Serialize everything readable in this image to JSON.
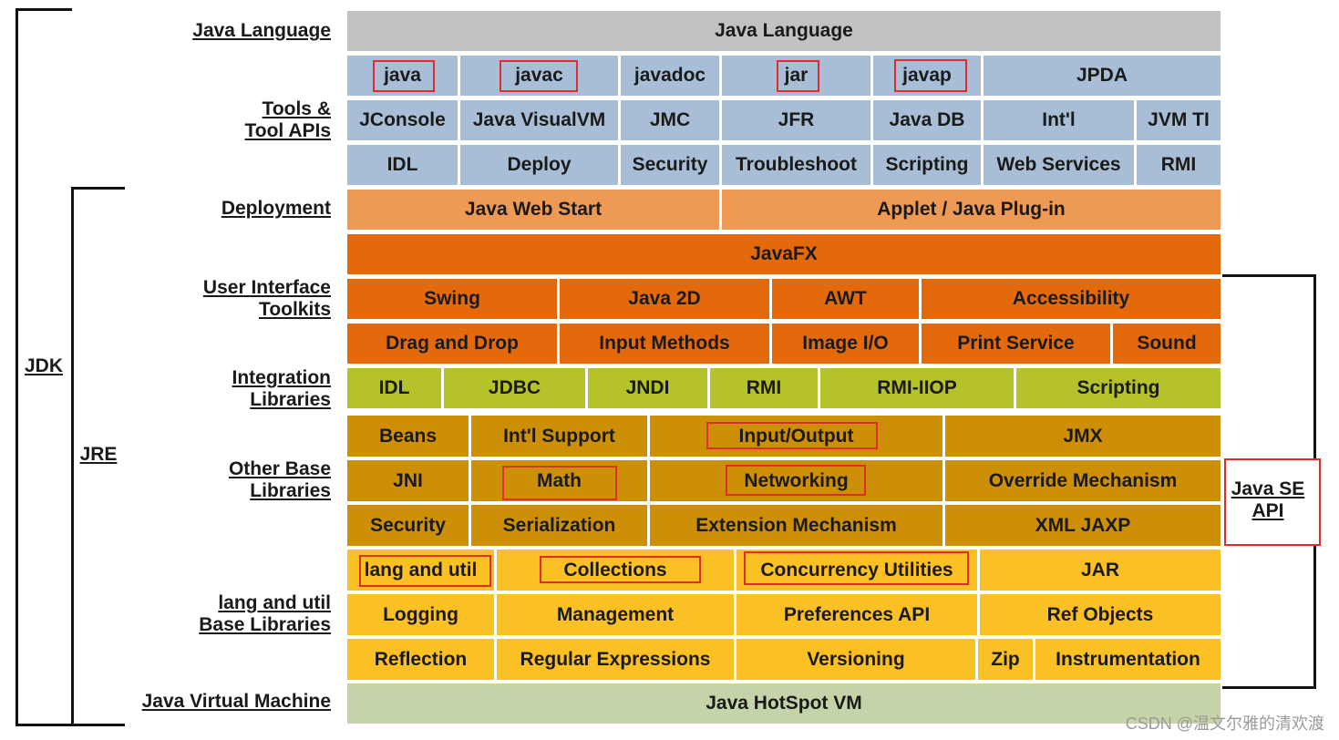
{
  "rows": {
    "java_language": [
      "Java Language"
    ],
    "tools_1": [
      "java",
      "javac",
      "javadoc",
      "jar",
      "javap",
      "JPDA"
    ],
    "tools_2": [
      "JConsole",
      "Java VisualVM",
      "JMC",
      "JFR",
      "Java DB",
      "Int'l",
      "JVM TI"
    ],
    "tools_3": [
      "IDL",
      "Deploy",
      "Security",
      "Troubleshoot",
      "Scripting",
      "Web Services",
      "RMI"
    ],
    "deployment": [
      "Java Web Start",
      "Applet / Java Plug-in"
    ],
    "javafx": [
      "JavaFX"
    ],
    "ui_1": [
      "Swing",
      "Java 2D",
      "AWT",
      "Accessibility"
    ],
    "ui_2": [
      "Drag and Drop",
      "Input Methods",
      "Image I/O",
      "Print Service",
      "Sound"
    ],
    "integration": [
      "IDL",
      "JDBC",
      "JNDI",
      "RMI",
      "RMI-IIOP",
      "Scripting"
    ],
    "other_1": [
      "Beans",
      "Int'l Support",
      "Input/Output",
      "JMX"
    ],
    "other_2": [
      "JNI",
      "Math",
      "Networking",
      "Override Mechanism"
    ],
    "other_3": [
      "Security",
      "Serialization",
      "Extension Mechanism",
      "XML JAXP"
    ],
    "lang_1": [
      "lang and util",
      "Collections",
      "Concurrency Utilities",
      "JAR"
    ],
    "lang_2": [
      "Logging",
      "Management",
      "Preferences API",
      "Ref Objects"
    ],
    "lang_3": [
      "Reflection",
      "Regular Expressions",
      "Versioning",
      "Zip",
      "Instrumentation"
    ],
    "jvm": [
      "Java HotSpot VM"
    ]
  },
  "side_labels": {
    "java_language": "Java Language",
    "tools_line1": "Tools &",
    "tools_line2": "Tool APIs",
    "deployment": "Deployment",
    "ui_line1": "User Interface",
    "ui_line2": "Toolkits",
    "integration_line1": "Integration",
    "integration_line2": "Libraries",
    "other_line1": "Other Base",
    "other_line2": "Libraries",
    "lang_line1": "lang and util",
    "lang_line2": "Base Libraries",
    "jvm": "Java Virtual Machine"
  },
  "brackets": {
    "jdk": "JDK",
    "jre": "JRE",
    "api_line1": "Java SE",
    "api_line2": "API"
  },
  "colors": {
    "java_language": "#c2c2c2",
    "tools": "#a8bed6",
    "deployment": "#ee9a55",
    "ui": "#e3690b",
    "integration": "#b5c229",
    "other_base": "#cd8f05",
    "lang_util": "#fbc023",
    "jvm": "#c4d4a8",
    "highlight": "#e02c2c"
  },
  "watermark": "CSDN @温文尔雅的清欢渡"
}
